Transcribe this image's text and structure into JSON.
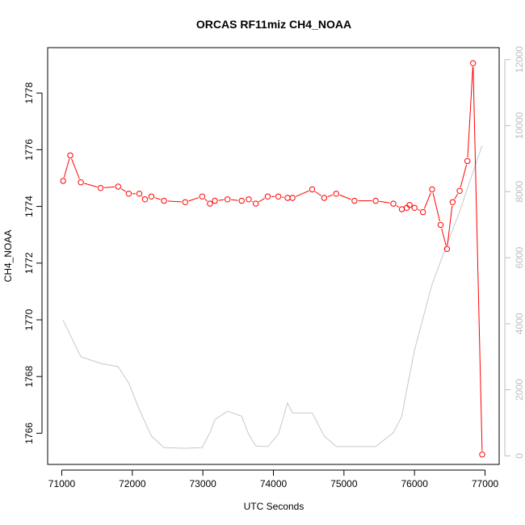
{
  "chart_data": {
    "type": "line",
    "title": "ORCAS RF11miz CH4_NOAA",
    "xlabel": "UTC Seconds",
    "ylabel": "CH4_NOAA",
    "xlim": [
      70800,
      77200
    ],
    "ylim": [
      1764.9,
      1779.6
    ],
    "y2lim": [
      -260,
      12360
    ],
    "x_ticks": [
      71000,
      72000,
      73000,
      74000,
      75000,
      76000,
      77000
    ],
    "y_ticks": [
      1766,
      1768,
      1770,
      1772,
      1774,
      1776,
      1778
    ],
    "y2_ticks": [
      0,
      2000,
      4000,
      6000,
      8000,
      10000,
      12000
    ],
    "grid": false,
    "colors": {
      "ch4": "#ff0000",
      "altitude": "#c8c8c8",
      "axis": "#000000",
      "right_axis": "#bdbdbd"
    },
    "series": [
      {
        "axis": "left",
        "style": "line-points",
        "x": [
          71020,
          71120,
          71270,
          71550,
          71800,
          71950,
          72100,
          72180,
          72270,
          72450,
          72750,
          72990,
          73100,
          73170,
          73350,
          73550,
          73650,
          73750,
          73920,
          74070,
          74200,
          74270,
          74550,
          74720,
          74890,
          75150,
          75450,
          75700,
          75820,
          75890,
          75930,
          76000,
          76120,
          76250,
          76370,
          76460,
          76540,
          76640,
          76750,
          76830,
          76960
        ],
        "y": [
          1774.9,
          1775.8,
          1774.85,
          1774.65,
          1774.7,
          1774.45,
          1774.45,
          1774.25,
          1774.35,
          1774.2,
          1774.15,
          1774.35,
          1774.1,
          1774.2,
          1774.25,
          1774.2,
          1774.25,
          1774.1,
          1774.35,
          1774.35,
          1774.3,
          1774.3,
          1774.6,
          1774.3,
          1774.45,
          1774.2,
          1774.2,
          1774.1,
          1773.9,
          1773.95,
          1774.05,
          1773.95,
          1773.8,
          1774.6,
          1773.35,
          1772.5,
          1774.15,
          1774.55,
          1775.6,
          1779.05,
          1765.25
        ]
      },
      {
        "axis": "right",
        "style": "line",
        "x": [
          71020,
          71270,
          71550,
          71800,
          71950,
          72100,
          72270,
          72450,
          72750,
          72990,
          73100,
          73170,
          73350,
          73550,
          73650,
          73750,
          73920,
          74070,
          74200,
          74270,
          74550,
          74720,
          74890,
          75150,
          75450,
          75700,
          75820,
          75890,
          76000,
          76250,
          76460,
          76640,
          76830,
          76960
        ],
        "y": [
          4100,
          3000,
          2800,
          2700,
          2200,
          1400,
          600,
          250,
          230,
          250,
          700,
          1100,
          1350,
          1200,
          650,
          300,
          280,
          650,
          1600,
          1300,
          1300,
          600,
          280,
          280,
          280,
          700,
          1200,
          2000,
          3200,
          5200,
          6400,
          7400,
          8600,
          9400
        ]
      }
    ]
  }
}
